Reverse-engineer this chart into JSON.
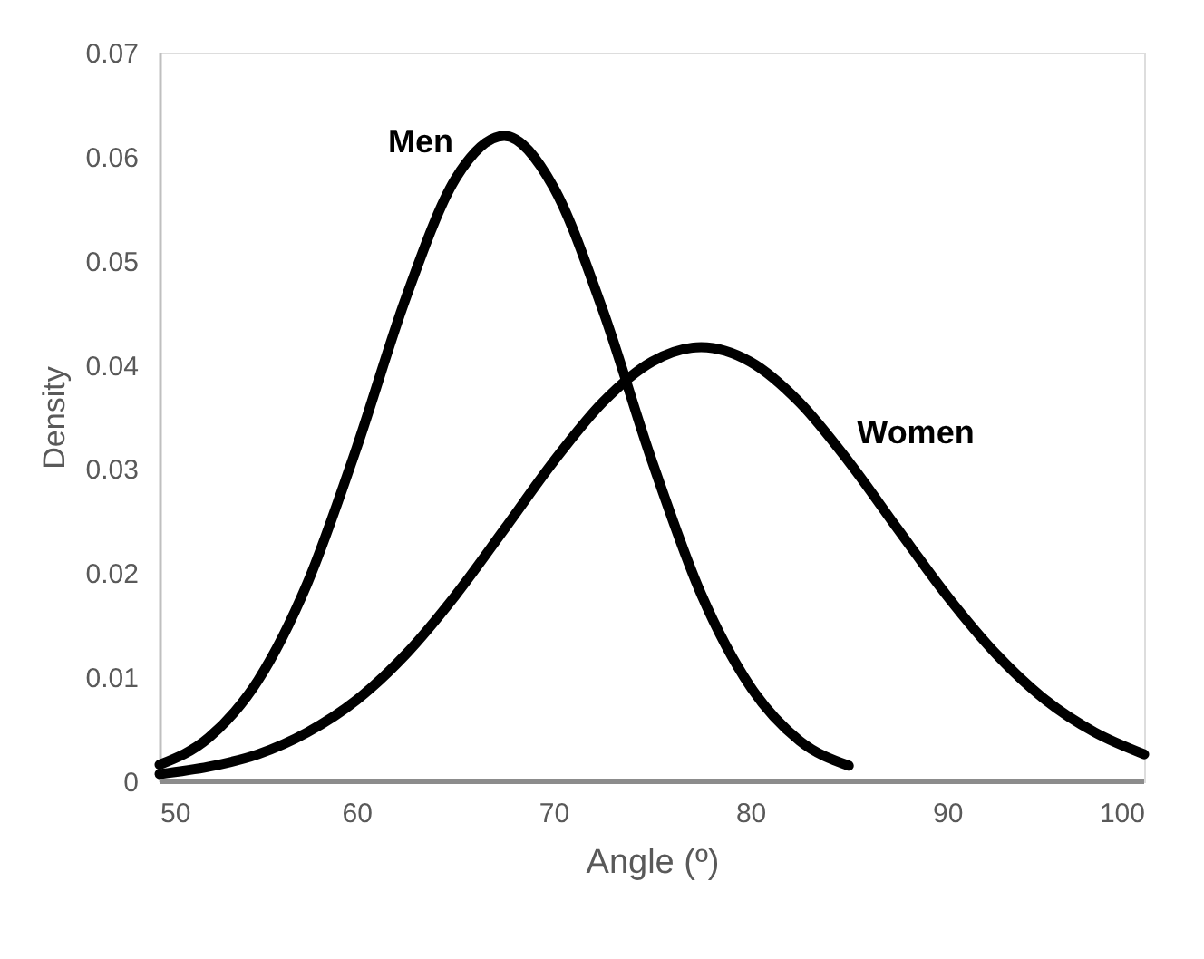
{
  "chart_data": {
    "type": "line",
    "xlabel": "Angle (º)",
    "ylabel": "Density",
    "xlim": [
      50,
      100
    ],
    "xticks": [
      50,
      60,
      70,
      80,
      90,
      100
    ],
    "ylim": [
      0,
      0.07
    ],
    "yticks": [
      {
        "value": 0,
        "label": "0"
      },
      0.01,
      0.02,
      0.03,
      0.04,
      0.05,
      0.06,
      0.07
    ],
    "grid": false,
    "legend": false,
    "marker": "none",
    "line_style": "solid",
    "series": [
      {
        "name": "Men",
        "color": "#000000",
        "x": [
          50,
          52.5,
          55,
          57.5,
          60,
          62.5,
          65,
          67.5,
          70,
          72.5,
          75,
          77.5,
          80,
          82.5,
          85
        ],
        "values": [
          0.0016,
          0.0042,
          0.0097,
          0.019,
          0.032,
          0.0464,
          0.0578,
          0.062,
          0.0571,
          0.0453,
          0.0308,
          0.018,
          0.0091,
          0.0039,
          0.0015
        ]
      },
      {
        "name": "Women",
        "color": "#000000",
        "x": [
          50,
          52.5,
          55,
          57.5,
          60,
          62.5,
          65,
          67.5,
          70,
          72.5,
          75,
          77.5,
          80,
          82.5,
          85,
          87.5,
          90,
          92.5,
          95,
          97.5,
          100
        ],
        "values": [
          0.0007,
          0.0014,
          0.0026,
          0.0047,
          0.0078,
          0.0122,
          0.0178,
          0.0242,
          0.0307,
          0.0364,
          0.0403,
          0.0417,
          0.0403,
          0.0364,
          0.0307,
          0.0242,
          0.0178,
          0.0122,
          0.0078,
          0.0047,
          0.0026
        ]
      }
    ]
  }
}
